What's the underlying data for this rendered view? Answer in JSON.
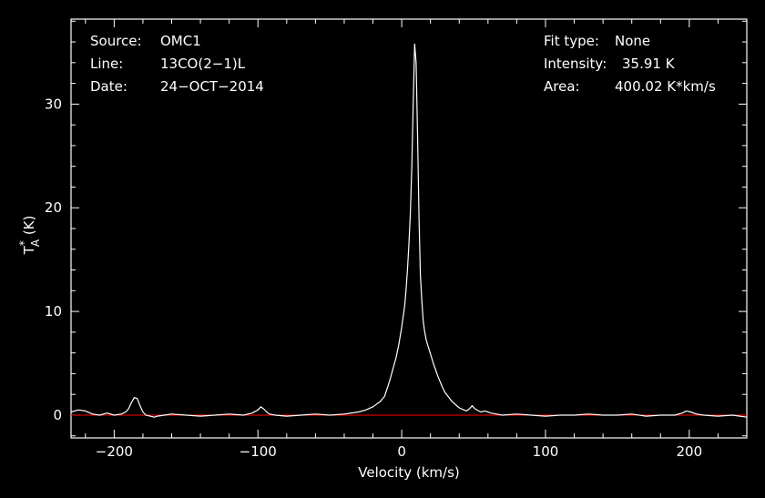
{
  "chart_data": {
    "type": "line",
    "title": "",
    "xlabel": "Velocity (km/s)",
    "ylabel_main": "T",
    "ylabel_sup": "*",
    "ylabel_sub": "A",
    "ylabel_unit": " (K)",
    "xlim": [
      -230,
      240
    ],
    "ylim": [
      -2.2,
      38.2
    ],
    "xticks": [
      -200,
      -100,
      0,
      100,
      200
    ],
    "xtick_labels": [
      "−200",
      "−100",
      "0",
      "100",
      "200"
    ],
    "yticks": [
      0,
      10,
      20,
      30
    ],
    "ytick_labels": [
      "0",
      "10",
      "20",
      "30"
    ],
    "grid": false,
    "colors": {
      "background": "#000000",
      "frame": "#ffffff",
      "spectrum": "#ffffff",
      "baseline": "#ff0000"
    },
    "baseline_value": 0,
    "series": [
      {
        "x": [
          -230,
          -225,
          -220,
          -215,
          -210,
          -205,
          -200,
          -195,
          -192,
          -190,
          -188,
          -186,
          -184,
          -182,
          -180,
          -178,
          -175,
          -172,
          -170,
          -165,
          -160,
          -150,
          -140,
          -130,
          -120,
          -110,
          -104,
          -100,
          -98,
          -96,
          -94,
          -92,
          -88,
          -80,
          -70,
          -60,
          -50,
          -40,
          -30,
          -25,
          -20,
          -15,
          -12,
          -10,
          -8,
          -6,
          -4,
          -2,
          0,
          2,
          3,
          4,
          5,
          6,
          7,
          8,
          9,
          10,
          11,
          12,
          13,
          14,
          15,
          16,
          17,
          18,
          20,
          22,
          25,
          28,
          30,
          35,
          40,
          45,
          47,
          49,
          51,
          55,
          58,
          62,
          66,
          70,
          80,
          90,
          100,
          110,
          120,
          130,
          140,
          150,
          160,
          170,
          180,
          190,
          195,
          198,
          201,
          205,
          210,
          220,
          230,
          240
        ],
        "y": [
          0.3,
          0.5,
          0.4,
          0.1,
          0.0,
          0.2,
          0.0,
          0.1,
          0.3,
          0.6,
          1.2,
          1.7,
          1.6,
          0.9,
          0.3,
          0.0,
          -0.1,
          -0.2,
          -0.1,
          0.0,
          0.1,
          0.0,
          -0.1,
          0.0,
          0.1,
          0.0,
          0.2,
          0.5,
          0.8,
          0.6,
          0.3,
          0.1,
          0.0,
          -0.1,
          0.0,
          0.1,
          0.0,
          0.1,
          0.3,
          0.5,
          0.8,
          1.3,
          1.8,
          2.6,
          3.5,
          4.5,
          5.5,
          6.8,
          8.5,
          10.5,
          12.0,
          14.0,
          16.5,
          19.5,
          24.0,
          30.0,
          35.8,
          34.0,
          27.0,
          19.0,
          13.5,
          11.0,
          9.0,
          8.0,
          7.3,
          6.8,
          5.9,
          5.0,
          3.8,
          2.8,
          2.2,
          1.3,
          0.7,
          0.4,
          0.6,
          0.9,
          0.6,
          0.3,
          0.4,
          0.2,
          0.1,
          0.0,
          0.1,
          0.0,
          -0.1,
          0.0,
          0.0,
          0.1,
          0.0,
          0.0,
          0.1,
          -0.1,
          0.0,
          0.0,
          0.2,
          0.4,
          0.3,
          0.1,
          0.0,
          -0.1,
          0.0,
          -0.2
        ]
      }
    ]
  },
  "info_left": [
    {
      "label": "Source:",
      "value": "OMC1"
    },
    {
      "label": "Line:",
      "value": "13CO(2−1)L"
    },
    {
      "label": "Date:",
      "value": "24−OCT−2014"
    }
  ],
  "info_right": [
    {
      "label": "Fit type:",
      "value": "None"
    },
    {
      "label": "Intensity:",
      "value": "35.91 K"
    },
    {
      "label": "Area:",
      "value": "400.02 K*km/s"
    }
  ]
}
